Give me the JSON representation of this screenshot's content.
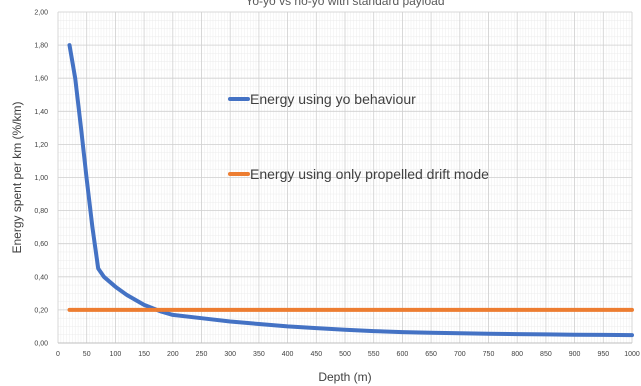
{
  "chart_data": {
    "type": "line",
    "title": "Yo-yo vs no-yo with standard payload",
    "xlabel": "Depth (m)",
    "ylabel": "Energy spent per km (%/km)",
    "xlim": [
      0,
      1000
    ],
    "ylim": [
      0,
      2.0
    ],
    "grid": true,
    "x_ticks": [
      0,
      50,
      100,
      150,
      200,
      250,
      300,
      350,
      400,
      450,
      500,
      550,
      600,
      650,
      700,
      750,
      800,
      850,
      900,
      950,
      1000
    ],
    "y_ticks": [
      "0,00",
      "0,20",
      "0,40",
      "0,60",
      "0,80",
      "1,00",
      "1,20",
      "1,40",
      "1,60",
      "1,80",
      "2,00"
    ],
    "legend_position": "inside-center",
    "series": [
      {
        "name": "Energy using yo behaviour",
        "color": "#4472C4",
        "x": [
          20,
          30,
          40,
          50,
          60,
          70,
          80,
          100,
          120,
          150,
          180,
          200,
          250,
          300,
          350,
          400,
          450,
          500,
          550,
          600,
          650,
          700,
          750,
          800,
          850,
          900,
          950,
          1000
        ],
        "y": [
          1.8,
          1.6,
          1.3,
          0.99,
          0.7,
          0.45,
          0.4,
          0.34,
          0.29,
          0.23,
          0.19,
          0.17,
          0.15,
          0.13,
          0.115,
          0.1,
          0.09,
          0.08,
          0.072,
          0.066,
          0.062,
          0.059,
          0.056,
          0.054,
          0.052,
          0.05,
          0.049,
          0.048
        ]
      },
      {
        "name": "Energy using only propelled drift mode",
        "color": "#ED7D31",
        "x": [
          20,
          1000
        ],
        "y": [
          0.2,
          0.2
        ]
      }
    ]
  }
}
